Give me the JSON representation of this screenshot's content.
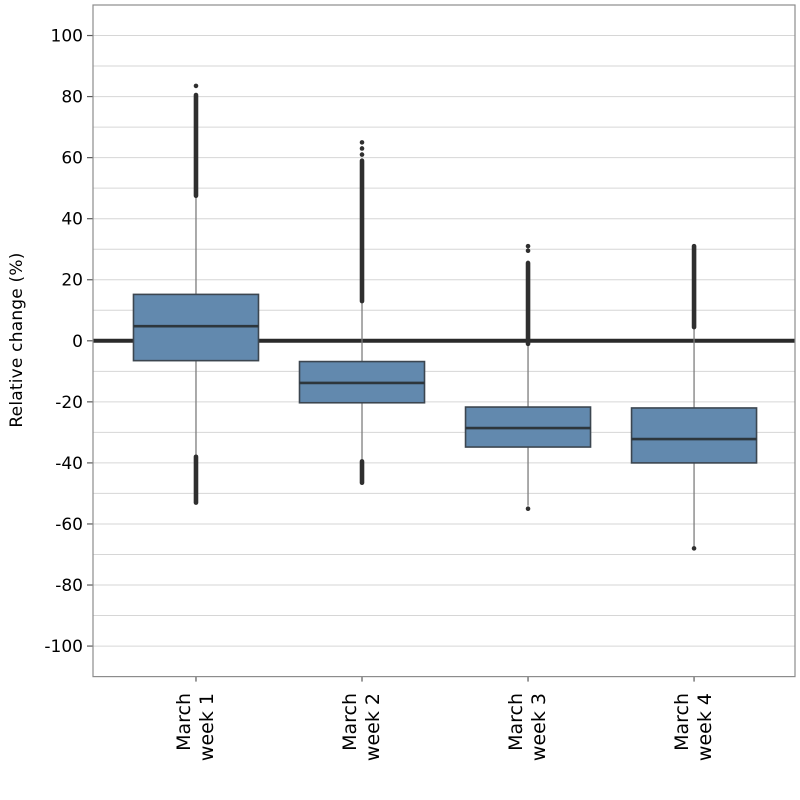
{
  "figure": {
    "background": "#ffffff"
  },
  "chart_data": {
    "type": "boxplot",
    "title": "",
    "xlabel": "",
    "ylabel": "Relative change (%)",
    "ylim": [
      -110,
      110
    ],
    "ygrid_step": 10,
    "grid": "on",
    "legend": "none",
    "zero_line": 0,
    "yticks": [
      100,
      80,
      60,
      40,
      20,
      0,
      -20,
      -40,
      -60,
      -80,
      -100
    ],
    "categories": [
      "March week 1",
      "March week 2",
      "March week 3",
      "March week 4"
    ],
    "boxes": [
      {
        "label_line1": "March",
        "label_line2": "week 1",
        "median": 4.8,
        "q1": -6.5,
        "q3": 15.2,
        "whisker_low": -37.5,
        "whisker_high": 47.0,
        "outliers_above": {
          "band": [
            47.5,
            80.5
          ],
          "points": [
            83.5
          ]
        },
        "outliers_below": {
          "band": [
            -38.0,
            -53.0
          ],
          "points": []
        }
      },
      {
        "label_line1": "March",
        "label_line2": "week 2",
        "median": -13.8,
        "q1": -20.3,
        "q3": -6.8,
        "whisker_low": -39.0,
        "whisker_high": 12.5,
        "outliers_above": {
          "band": [
            13.0,
            59.0
          ],
          "points": [
            61.0,
            63.0,
            65.0
          ]
        },
        "outliers_below": {
          "band": [
            -39.5,
            -46.5
          ],
          "points": []
        }
      },
      {
        "label_line1": "March",
        "label_line2": "week 3",
        "median": -28.6,
        "q1": -34.8,
        "q3": -21.7,
        "whisker_low": -54.0,
        "whisker_high": -1.5,
        "outliers_above": {
          "band": [
            -1.0,
            25.5
          ],
          "points": [
            29.5,
            31.0
          ]
        },
        "outliers_below": {
          "band": null,
          "points": [
            -55.0
          ]
        }
      },
      {
        "label_line1": "March",
        "label_line2": "week 4",
        "median": -32.2,
        "q1": -40.0,
        "q3": -22.0,
        "whisker_low": -67.5,
        "whisker_high": 4.0,
        "outliers_above": {
          "band": [
            4.5,
            31.0
          ],
          "points": []
        },
        "outliers_below": {
          "band": null,
          "points": [
            -68.0
          ]
        }
      }
    ],
    "colors": {
      "box_fill": "#6289ae",
      "box_border": "#3c4650",
      "median_line": "#2d363c",
      "whisker": "#7d7d7d",
      "outlier": "#2f2f2f",
      "zero_line": "#2a2a2a",
      "grid": "#d6d6d6",
      "spine": "#8c8c8c",
      "tick": "#595959",
      "text": "#000000"
    }
  }
}
